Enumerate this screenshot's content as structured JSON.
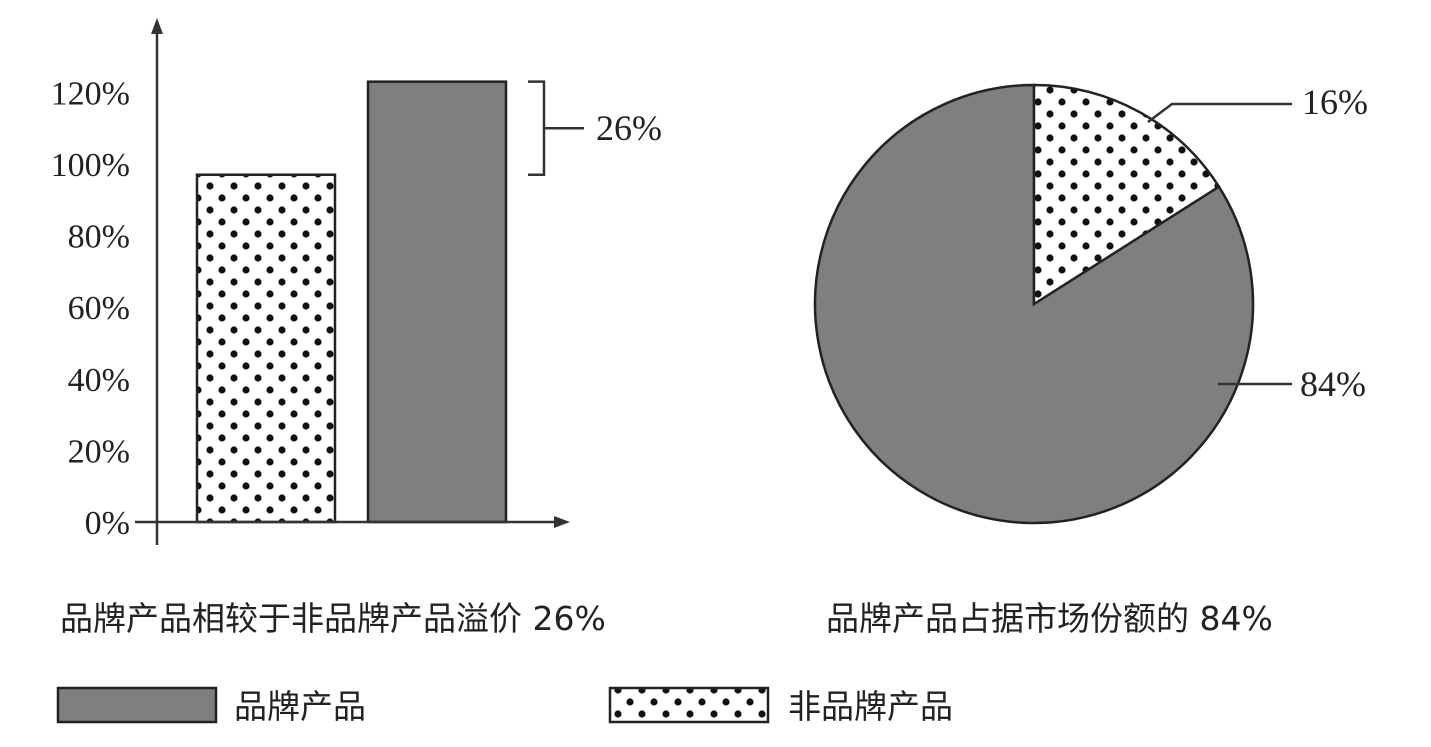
{
  "chart_data": [
    {
      "type": "bar",
      "categories": [
        "非品牌产品",
        "品牌产品"
      ],
      "values": [
        97,
        123
      ],
      "yticks": [
        "0%",
        "20%",
        "40%",
        "60%",
        "80%",
        "100%",
        "120%"
      ],
      "ylim": [
        0,
        130
      ],
      "annotation": "26%",
      "caption": "品牌产品相较于非品牌产品溢价 26%"
    },
    {
      "type": "pie",
      "slices": [
        {
          "label": "非品牌产品",
          "value": 16,
          "text": "16%"
        },
        {
          "label": "品牌产品",
          "value": 84,
          "text": "84%"
        }
      ],
      "caption": "品牌产品占据市场份额的 84%"
    }
  ],
  "legend": {
    "items": [
      {
        "label": "品牌产品",
        "style": "solid"
      },
      {
        "label": "非品牌产品",
        "style": "dotted"
      }
    ]
  },
  "colors": {
    "branded": "#7f7f7f",
    "non_branded_bg": "#ffffff",
    "dot": "#111111",
    "outline": "#222222"
  }
}
